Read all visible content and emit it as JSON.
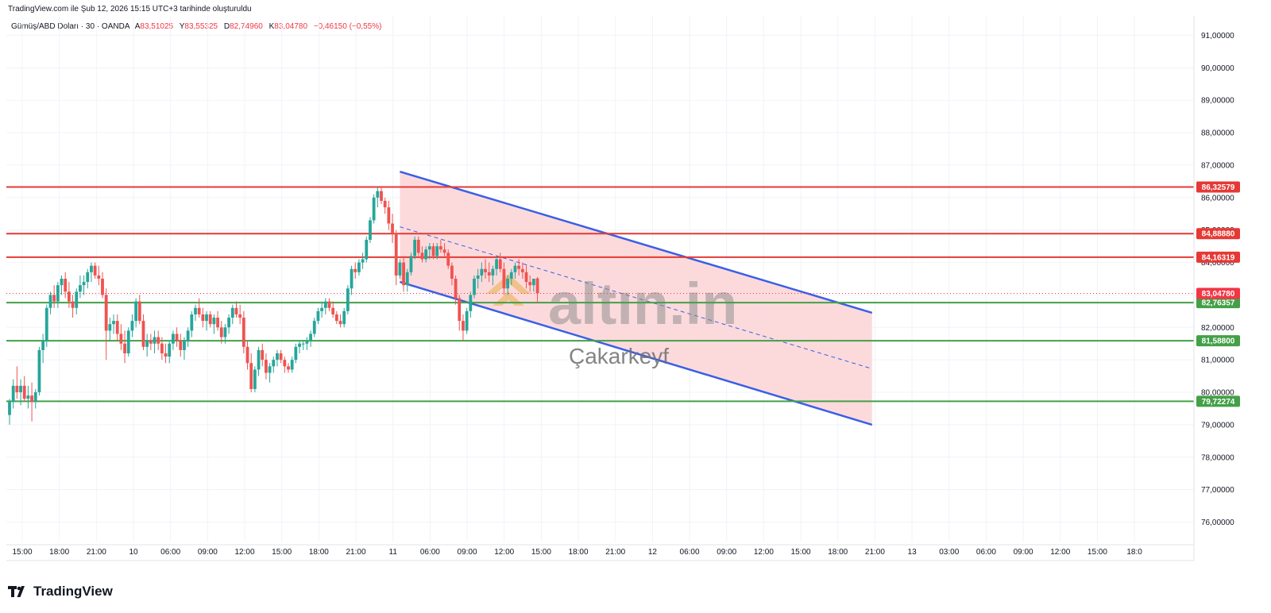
{
  "header": {
    "credit": "TradingView.com ile Şub 12, 2026 15:15 UTC+3 tarihinde oluşturuldu"
  },
  "legend": {
    "symbol": "Gümüş/ABD Doları · 30 · OANDA",
    "open_label": "A",
    "open": "83,51025",
    "high_label": "Y",
    "high": "83,55325",
    "low_label": "D",
    "low": "82,74960",
    "close_label": "K",
    "close": "83,04780",
    "change": "−0,46150 (−0,55%)"
  },
  "watermark": {
    "brand": "altın.in",
    "author": "Çakarkeyf"
  },
  "footer": {
    "brand": "TradingView"
  },
  "colors": {
    "up": "#26a69a",
    "down": "#ef5350",
    "resistance": "#e53935",
    "support": "#43a047",
    "channel": "#3a5fe5",
    "channel_fill": "#fbd3d6",
    "price_tag": "#f23645"
  },
  "chart_data": {
    "type": "candlestick",
    "symbol": "Gümüş/ABD Doları",
    "timeframe": "30",
    "ylim": [
      75.4,
      91.6
    ],
    "y_ticks": [
      "76,00000",
      "77,00000",
      "78,00000",
      "79,00000",
      "80,00000",
      "81,00000",
      "82,00000",
      "83,00000",
      "84,00000",
      "85,00000",
      "86,00000",
      "87,00000",
      "88,00000",
      "89,00000",
      "90,00000",
      "91,00000"
    ],
    "x_ticks": [
      "15:00",
      "18:00",
      "21:00",
      "10",
      "06:00",
      "09:00",
      "12:00",
      "15:00",
      "18:00",
      "21:00",
      "11",
      "06:00",
      "09:00",
      "12:00",
      "15:00",
      "18:00",
      "21:00",
      "12",
      "06:00",
      "09:00",
      "12:00",
      "15:00",
      "18:00",
      "21:00",
      "13",
      "03:00",
      "06:00",
      "09:00",
      "12:00",
      "15:00",
      "18:0"
    ],
    "resistance_levels": [
      {
        "value": 86.32579,
        "label": "86,32579"
      },
      {
        "value": 84.8888,
        "label": "84,88880"
      },
      {
        "value": 84.16319,
        "label": "84,16319"
      }
    ],
    "support_levels": [
      {
        "value": 82.76357,
        "label": "82,76357"
      },
      {
        "value": 81.588,
        "label": "81,58800"
      },
      {
        "value": 79.72274,
        "label": "79,72274"
      }
    ],
    "current_price": {
      "value": 83.0478,
      "label": "83,04780"
    },
    "channel": {
      "upper_start": 86.8,
      "upper_end": 82.45,
      "lower_start": 83.4,
      "lower_end": 79.0,
      "start_index": 105,
      "end_index": 232
    },
    "candles": [
      [
        79.3,
        79.8,
        79.0,
        79.7
      ],
      [
        79.7,
        80.4,
        79.5,
        80.2
      ],
      [
        80.2,
        80.8,
        79.8,
        80.0
      ],
      [
        80.0,
        80.4,
        79.6,
        80.2
      ],
      [
        80.2,
        80.5,
        79.7,
        79.8
      ],
      [
        79.8,
        80.2,
        79.5,
        79.9
      ],
      [
        79.9,
        80.3,
        79.1,
        79.7
      ],
      [
        79.7,
        80.1,
        79.5,
        80.0
      ],
      [
        80.0,
        81.4,
        79.9,
        81.3
      ],
      [
        81.3,
        81.8,
        80.9,
        81.6
      ],
      [
        81.6,
        82.7,
        81.4,
        82.6
      ],
      [
        82.6,
        83.1,
        82.4,
        83.0
      ],
      [
        83.0,
        83.3,
        82.6,
        82.8
      ],
      [
        82.8,
        83.4,
        82.6,
        83.3
      ],
      [
        83.3,
        83.6,
        83.0,
        83.5
      ],
      [
        83.5,
        83.7,
        82.9,
        83.1
      ],
      [
        83.1,
        83.4,
        82.6,
        82.8
      ],
      [
        82.8,
        83.0,
        82.3,
        82.6
      ],
      [
        82.6,
        83.2,
        82.4,
        83.1
      ],
      [
        83.1,
        83.6,
        82.9,
        83.3
      ],
      [
        83.3,
        83.6,
        83.0,
        83.4
      ],
      [
        83.4,
        83.8,
        83.2,
        83.7
      ],
      [
        83.7,
        84.0,
        83.4,
        83.9
      ],
      [
        83.9,
        84.0,
        83.5,
        83.6
      ],
      [
        83.6,
        83.9,
        83.3,
        83.5
      ],
      [
        83.5,
        83.7,
        82.9,
        83.0
      ],
      [
        83.0,
        83.2,
        81.0,
        81.9
      ],
      [
        81.9,
        82.3,
        81.6,
        82.1
      ],
      [
        82.1,
        82.4,
        81.8,
        82.2
      ],
      [
        82.2,
        82.4,
        81.6,
        81.8
      ],
      [
        81.8,
        82.1,
        81.3,
        81.5
      ],
      [
        81.5,
        81.9,
        80.9,
        81.2
      ],
      [
        81.2,
        82.0,
        81.1,
        81.9
      ],
      [
        81.9,
        82.4,
        81.7,
        82.2
      ],
      [
        82.2,
        82.9,
        82.0,
        82.8
      ],
      [
        82.8,
        83.0,
        82.1,
        82.2
      ],
      [
        82.2,
        82.4,
        81.3,
        81.4
      ],
      [
        81.4,
        81.8,
        81.1,
        81.6
      ],
      [
        81.6,
        81.8,
        81.3,
        81.5
      ],
      [
        81.5,
        81.9,
        81.2,
        81.7
      ],
      [
        81.7,
        81.9,
        81.3,
        81.5
      ],
      [
        81.5,
        81.7,
        81.0,
        81.2
      ],
      [
        81.2,
        81.5,
        80.9,
        81.1
      ],
      [
        81.1,
        81.6,
        80.9,
        81.5
      ],
      [
        81.5,
        81.9,
        81.3,
        81.8
      ],
      [
        81.8,
        82.0,
        81.4,
        81.6
      ],
      [
        81.6,
        81.8,
        81.1,
        81.3
      ],
      [
        81.3,
        81.7,
        81.0,
        81.6
      ],
      [
        81.6,
        82.0,
        81.4,
        81.9
      ],
      [
        81.9,
        82.5,
        81.7,
        82.4
      ],
      [
        82.4,
        82.7,
        82.2,
        82.6
      ],
      [
        82.6,
        82.9,
        82.3,
        82.4
      ],
      [
        82.4,
        82.6,
        82.0,
        82.2
      ],
      [
        82.2,
        82.5,
        81.9,
        82.4
      ],
      [
        82.4,
        82.5,
        82.0,
        82.1
      ],
      [
        82.1,
        82.4,
        81.8,
        82.3
      ],
      [
        82.3,
        82.5,
        81.9,
        82.0
      ],
      [
        82.0,
        82.2,
        81.5,
        81.7
      ],
      [
        81.7,
        82.1,
        81.5,
        82.0
      ],
      [
        82.0,
        82.4,
        81.8,
        82.3
      ],
      [
        82.3,
        82.7,
        82.1,
        82.6
      ],
      [
        82.6,
        82.8,
        82.3,
        82.4
      ],
      [
        82.4,
        82.7,
        82.1,
        82.3
      ],
      [
        82.3,
        82.5,
        81.2,
        81.4
      ],
      [
        81.4,
        81.6,
        80.7,
        80.9
      ],
      [
        80.9,
        81.2,
        80.0,
        80.1
      ],
      [
        80.1,
        80.8,
        80.0,
        80.7
      ],
      [
        80.7,
        81.4,
        80.5,
        81.3
      ],
      [
        81.3,
        81.5,
        80.8,
        81.0
      ],
      [
        81.0,
        81.2,
        80.4,
        80.6
      ],
      [
        80.6,
        80.9,
        80.3,
        80.8
      ],
      [
        80.8,
        81.1,
        80.6,
        81.0
      ],
      [
        81.0,
        81.3,
        80.8,
        81.2
      ],
      [
        81.2,
        81.3,
        80.9,
        81.0
      ],
      [
        81.0,
        81.1,
        80.6,
        80.8
      ],
      [
        80.8,
        80.9,
        80.6,
        80.7
      ],
      [
        80.7,
        81.1,
        80.6,
        81.0
      ],
      [
        81.0,
        81.5,
        80.9,
        81.4
      ],
      [
        81.4,
        81.6,
        81.2,
        81.5
      ],
      [
        81.5,
        81.6,
        81.3,
        81.5
      ],
      [
        81.5,
        81.7,
        81.3,
        81.6
      ],
      [
        81.6,
        81.9,
        81.4,
        81.8
      ],
      [
        81.8,
        82.3,
        81.7,
        82.2
      ],
      [
        82.2,
        82.6,
        82.1,
        82.5
      ],
      [
        82.5,
        82.8,
        82.3,
        82.6
      ],
      [
        82.6,
        82.9,
        82.4,
        82.8
      ],
      [
        82.8,
        82.9,
        82.5,
        82.6
      ],
      [
        82.6,
        82.8,
        82.3,
        82.4
      ],
      [
        82.4,
        82.5,
        82.1,
        82.2
      ],
      [
        82.2,
        82.4,
        82.0,
        82.1
      ],
      [
        82.1,
        82.6,
        82.0,
        82.5
      ],
      [
        82.5,
        83.3,
        82.4,
        83.2
      ],
      [
        83.2,
        83.9,
        83.0,
        83.8
      ],
      [
        83.8,
        84.0,
        83.5,
        83.7
      ],
      [
        83.7,
        84.1,
        83.6,
        84.0
      ],
      [
        84.0,
        84.3,
        83.8,
        84.1
      ],
      [
        84.1,
        84.8,
        84.0,
        84.7
      ],
      [
        84.7,
        85.4,
        84.6,
        85.3
      ],
      [
        85.3,
        86.1,
        85.2,
        86.0
      ],
      [
        86.0,
        86.3,
        85.7,
        86.2
      ],
      [
        86.2,
        86.3,
        85.8,
        85.9
      ],
      [
        85.9,
        86.0,
        85.5,
        85.7
      ],
      [
        85.7,
        85.9,
        85.0,
        85.2
      ],
      [
        85.2,
        85.5,
        84.6,
        84.9
      ],
      [
        84.9,
        85.0,
        83.3,
        83.6
      ],
      [
        83.6,
        84.1,
        83.5,
        84.0
      ],
      [
        84.0,
        84.2,
        83.1,
        83.3
      ],
      [
        83.3,
        83.8,
        83.1,
        83.7
      ],
      [
        83.7,
        84.3,
        83.6,
        84.2
      ],
      [
        84.2,
        84.8,
        84.1,
        84.7
      ],
      [
        84.7,
        84.8,
        84.2,
        84.3
      ],
      [
        84.3,
        84.5,
        84.0,
        84.1
      ],
      [
        84.1,
        84.5,
        84.0,
        84.4
      ],
      [
        84.4,
        84.6,
        84.1,
        84.5
      ],
      [
        84.5,
        84.6,
        84.1,
        84.2
      ],
      [
        84.2,
        84.6,
        84.1,
        84.5
      ],
      [
        84.5,
        84.7,
        84.3,
        84.4
      ],
      [
        84.4,
        84.6,
        84.2,
        84.3
      ],
      [
        84.3,
        84.4,
        83.8,
        83.9
      ],
      [
        83.9,
        84.0,
        83.3,
        83.5
      ],
      [
        83.5,
        83.6,
        82.7,
        82.9
      ],
      [
        82.9,
        83.0,
        81.9,
        82.2
      ],
      [
        82.2,
        82.4,
        81.6,
        81.9
      ],
      [
        81.9,
        82.6,
        81.8,
        82.5
      ],
      [
        82.5,
        83.1,
        82.3,
        83.0
      ],
      [
        83.0,
        83.6,
        82.9,
        83.5
      ],
      [
        83.5,
        83.8,
        83.2,
        83.6
      ],
      [
        83.6,
        84.0,
        83.4,
        83.8
      ],
      [
        83.8,
        84.1,
        83.5,
        83.7
      ],
      [
        83.7,
        84.0,
        83.4,
        83.6
      ],
      [
        83.6,
        83.9,
        83.3,
        83.8
      ],
      [
        83.8,
        84.2,
        83.6,
        84.1
      ],
      [
        84.1,
        84.3,
        83.7,
        83.8
      ],
      [
        83.8,
        84.0,
        83.0,
        83.2
      ],
      [
        83.2,
        83.6,
        83.0,
        83.5
      ],
      [
        83.5,
        83.8,
        83.3,
        83.7
      ],
      [
        83.7,
        84.0,
        83.5,
        83.9
      ],
      [
        83.9,
        84.1,
        83.6,
        83.8
      ],
      [
        83.8,
        84.0,
        83.5,
        83.7
      ],
      [
        83.7,
        83.9,
        83.2,
        83.4
      ],
      [
        83.4,
        83.6,
        83.1,
        83.3
      ],
      [
        83.3,
        83.5,
        83.1,
        83.5
      ],
      [
        83.51025,
        83.55325,
        82.7496,
        83.0478
      ]
    ]
  }
}
